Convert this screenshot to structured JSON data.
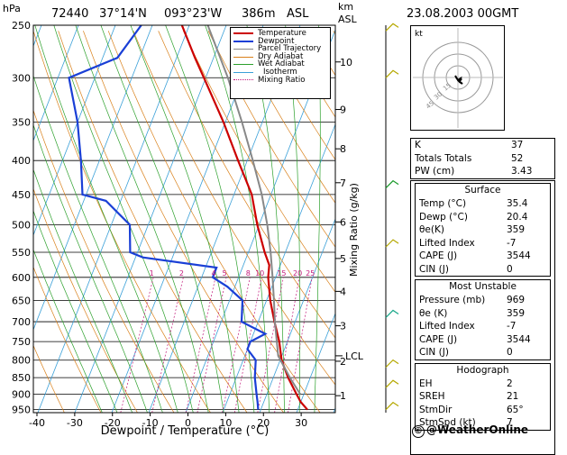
{
  "header": {
    "station": "72440",
    "lat": "37°14'N",
    "lon": "093°23'W",
    "elev": "386m",
    "asl": "ASL",
    "datetime": "23.08.2003 00GMT",
    "hpa": "hPa",
    "km": "km",
    "km_asl": "ASL"
  },
  "chart_data": {
    "type": "line",
    "title": "72440 37°14'N 093°23'W 386m ASL",
    "xlabel": "Dewpoint / Temperature (°C)",
    "ylabel": "hPa",
    "right_axis_label": "Mixing Ratio (g/kg)",
    "pressure_ticks": [
      250,
      300,
      350,
      400,
      450,
      500,
      550,
      600,
      650,
      700,
      750,
      800,
      850,
      900,
      950
    ],
    "temperature_ticks": [
      -40,
      -30,
      -20,
      -10,
      0,
      10,
      20,
      30
    ],
    "xlim": [
      -40,
      40
    ],
    "ylim": [
      960,
      250
    ],
    "km_ticks": [
      {
        "p": 284,
        "label": "10"
      },
      {
        "p": 335,
        "label": "9"
      },
      {
        "p": 384,
        "label": "8"
      },
      {
        "p": 432,
        "label": "7"
      },
      {
        "p": 495,
        "label": "6"
      },
      {
        "p": 562,
        "label": "5"
      },
      {
        "p": 630,
        "label": "4"
      },
      {
        "p": 710,
        "label": "3"
      },
      {
        "p": 803,
        "label": "2"
      },
      {
        "p": 905,
        "label": "1"
      }
    ],
    "lcl": {
      "p": 788,
      "label": "LCL"
    },
    "mixing_ratio_labels": [
      "1",
      "2",
      "4",
      "5",
      "8",
      "10",
      "15",
      "20",
      "25"
    ],
    "legend": [
      "Temperature",
      "Dewpoint",
      "Parcel Trajectory",
      "Dry Adiabat",
      "Wet Adiabat",
      "Isotherm",
      "Mixing Ratio"
    ],
    "legend_colors": [
      "#cc0000",
      "#1a3fd6",
      "#888888",
      "#d9801a",
      "#2ca02c",
      "#3aa0d8",
      "#c2187a"
    ],
    "series": [
      {
        "name": "Temperature",
        "color": "#cc0000",
        "points": [
          [
            969,
            35.4
          ],
          [
            950,
            32.6
          ],
          [
            925,
            30
          ],
          [
            900,
            28
          ],
          [
            850,
            24
          ],
          [
            800,
            20.4
          ],
          [
            750,
            17.8
          ],
          [
            700,
            14.4
          ],
          [
            650,
            11
          ],
          [
            600,
            8
          ],
          [
            575,
            7
          ],
          [
            550,
            4.4
          ],
          [
            500,
            -0.5
          ],
          [
            450,
            -5.2
          ],
          [
            400,
            -12.5
          ],
          [
            350,
            -20.5
          ],
          [
            300,
            -30.5
          ],
          [
            280,
            -35
          ],
          [
            250,
            -42
          ]
        ]
      },
      {
        "name": "Dewpoint",
        "color": "#1a3fd6",
        "points": [
          [
            969,
            20.4
          ],
          [
            950,
            19.3
          ],
          [
            925,
            18.3
          ],
          [
            900,
            17.2
          ],
          [
            850,
            15
          ],
          [
            800,
            13.4
          ],
          [
            770,
            10
          ],
          [
            750,
            10
          ],
          [
            730,
            13.2
          ],
          [
            700,
            5.5
          ],
          [
            650,
            3.5
          ],
          [
            620,
            -2
          ],
          [
            600,
            -7
          ],
          [
            580,
            -7
          ],
          [
            560,
            -28
          ],
          [
            550,
            -32
          ],
          [
            500,
            -35
          ],
          [
            460,
            -44
          ],
          [
            450,
            -51
          ],
          [
            400,
            -55
          ],
          [
            350,
            -60
          ],
          [
            300,
            -67
          ],
          [
            280,
            -56
          ],
          [
            250,
            -53
          ]
        ]
      },
      {
        "name": "Parcel Trajectory",
        "color": "#888888",
        "points": [
          [
            969,
            35.4
          ],
          [
            900,
            29
          ],
          [
            850,
            24.5
          ],
          [
            788,
            19
          ],
          [
            700,
            14.5
          ],
          [
            650,
            12
          ],
          [
            600,
            9.2
          ],
          [
            550,
            6
          ],
          [
            500,
            2.2
          ],
          [
            450,
            -2.5
          ],
          [
            400,
            -8.5
          ],
          [
            350,
            -15.5
          ],
          [
            300,
            -24
          ],
          [
            250,
            -35
          ]
        ]
      }
    ]
  },
  "hodograph": {
    "label": "kt",
    "rings": [
      "15",
      "30",
      "45"
    ]
  },
  "indices": [
    {
      "label": "K",
      "value": "37"
    },
    {
      "label": "Totals Totals",
      "value": "52"
    },
    {
      "label": "PW (cm)",
      "value": "3.43"
    }
  ],
  "surface": {
    "title": "Surface",
    "rows": [
      {
        "label": "Temp (°C)",
        "value": "35.4"
      },
      {
        "label": "Dewp (°C)",
        "value": "20.4"
      },
      {
        "label": "θe(K)",
        "value": "359"
      },
      {
        "label": "Lifted Index",
        "value": "-7"
      },
      {
        "label": "CAPE (J)",
        "value": "3544"
      },
      {
        "label": "CIN (J)",
        "value": "0"
      }
    ]
  },
  "most_unstable": {
    "title": "Most Unstable",
    "rows": [
      {
        "label": "Pressure (mb)",
        "value": "969"
      },
      {
        "label": "θe (K)",
        "value": "359"
      },
      {
        "label": "Lifted Index",
        "value": "-7"
      },
      {
        "label": "CAPE (J)",
        "value": "3544"
      },
      {
        "label": "CIN (J)",
        "value": "0"
      }
    ]
  },
  "hodograph_table": {
    "title": "Hodograph",
    "rows": [
      {
        "label": "EH",
        "value": "2"
      },
      {
        "label": "SREH",
        "value": "21"
      },
      {
        "label": "StmDir",
        "value": "65°"
      },
      {
        "label": "StmSpd (kt)",
        "value": "7"
      }
    ]
  },
  "credit": "@WeatherOnline"
}
